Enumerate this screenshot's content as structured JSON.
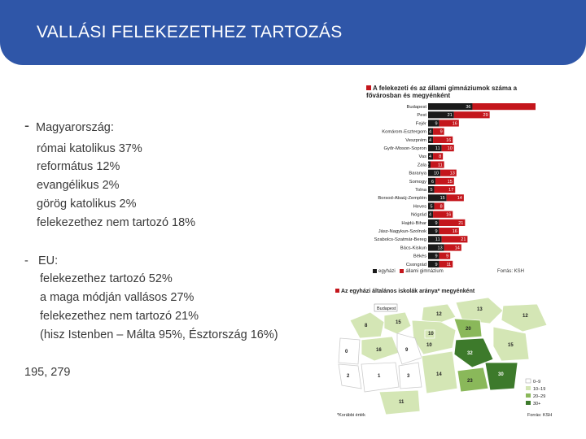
{
  "title": "VALLÁSI FELEKEZETHEZ TARTOZÁS",
  "hungary": {
    "dash": "-",
    "heading": "Magyarország:",
    "items": [
      "római katolikus 37%",
      "református 12%",
      "evangélikus 2%",
      "görög katolikus 2%",
      "felekezethez nem tartozó 18%"
    ]
  },
  "eu": {
    "dash": "-",
    "heading": "EU:",
    "items": [
      "felekezethez tartozó 52%",
      "a maga módján vallásos 27%",
      "felekezethez nem tartozó 21%",
      "(hisz Istenben – Málta 95%, Észtország 16%)"
    ]
  },
  "footnote_numbers": "195, 279",
  "chart_data": {
    "type": "bar",
    "title": "A felekezeti és az állami gimnáziumok száma a fővárosban és megyénként",
    "categories": [
      "Budapest",
      "Pest",
      "Fejér",
      "Komárom-Esztergom",
      "Veszprém",
      "Győr-Moson-Sopron",
      "Vas",
      "Zala",
      "Baranya",
      "Somogy",
      "Tolna",
      "Borsod-Abaúj-Zemplén",
      "Heves",
      "Nógrád",
      "Hajdú-Bihar",
      "Jász-Nagykun-Szolnok",
      "Szabolcs-Szatmár-Bereg",
      "Bács-Kiskun",
      "Békés",
      "Csongrád"
    ],
    "series": [
      {
        "name": "egyházi",
        "color": "#1a1a1a",
        "values": [
          36,
          21,
          9,
          4,
          4,
          11,
          4,
          2,
          10,
          6,
          5,
          15,
          5,
          4,
          9,
          9,
          11,
          13,
          9,
          9
        ]
      },
      {
        "name": "állami gimnázium",
        "color": "#c4161c",
        "values": [
          78,
          29,
          16,
          9,
          16,
          10,
          8,
          11,
          13,
          15,
          17,
          14,
          8,
          16,
          21,
          16,
          21,
          14,
          9,
          11
        ]
      }
    ],
    "legend": "bottom",
    "source": "Forrás: KSH"
  },
  "map": {
    "title": "Az egyházi általános iskolák aránya* megyénként",
    "budapest_label": "Budapest",
    "footnote": "*Korábbi érték",
    "source": "Forrás: KSH",
    "legend_items": [
      "0–9",
      "10–19",
      "20–29",
      "30+"
    ],
    "legend_colors": [
      "#ffffff",
      "#d4e6b5",
      "#8ab85a",
      "#3d7a2b"
    ],
    "counties": [
      {
        "name": "Győr-Moson-Sopron",
        "value": "8"
      },
      {
        "name": "Komárom-Esztergom",
        "value": "15"
      },
      {
        "name": "Nógrád",
        "value": "12"
      },
      {
        "name": "Borsod-Abaúj-Zemplén",
        "value": "13"
      },
      {
        "name": "Szabolcs-Szatmár-Bereg",
        "value": "12"
      },
      {
        "name": "Heves",
        "value": "20"
      },
      {
        "name": "Pest",
        "value": "10"
      },
      {
        "name": "Vas",
        "value": "0"
      },
      {
        "name": "Veszprém",
        "value": "16"
      },
      {
        "name": "Fejér",
        "value": "9"
      },
      {
        "name": "Jász-Nagykun-Szolnok",
        "value": "32"
      },
      {
        "name": "Hajdú-Bihar",
        "value": "15"
      },
      {
        "name": "Zala",
        "value": "2"
      },
      {
        "name": "Somogy",
        "value": "1"
      },
      {
        "name": "Tolna",
        "value": "3"
      },
      {
        "name": "Bács-Kiskun",
        "value": "14"
      },
      {
        "name": "Csongrád",
        "value": "23"
      },
      {
        "name": "Békés",
        "value": "30"
      },
      {
        "name": "Baranya",
        "value": "11"
      },
      {
        "name": "Budapest",
        "value": "10"
      }
    ]
  }
}
